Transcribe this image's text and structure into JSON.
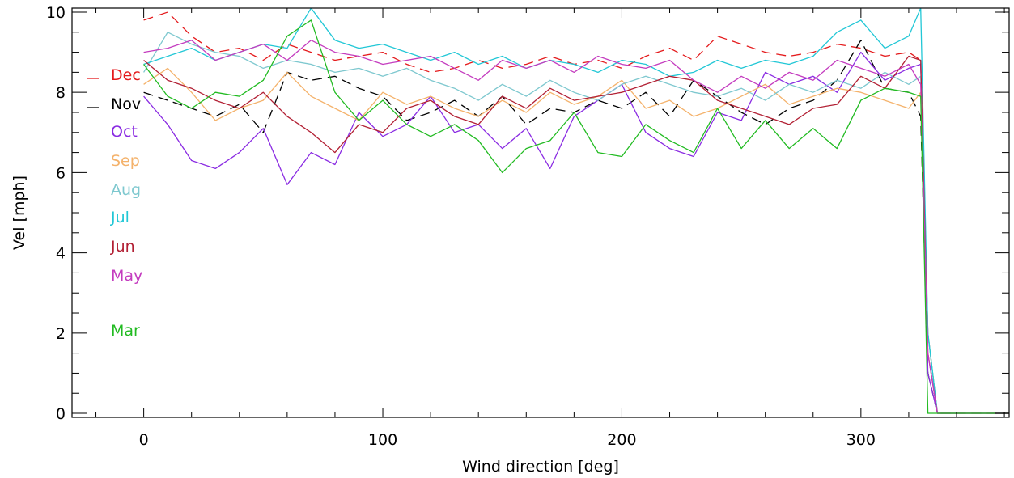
{
  "chart_data": {
    "type": "line",
    "title": "",
    "xlabel": "Wind direction [deg]",
    "ylabel": "Vel [mph]",
    "xlim": [
      -30,
      362
    ],
    "ylim": [
      -0.1,
      10.1
    ],
    "x_ticks": [
      0,
      100,
      200,
      300
    ],
    "y_ticks": [
      0,
      2,
      4,
      6,
      8,
      10
    ],
    "grid": false,
    "legend_position": "left-inside",
    "x": [
      0,
      10,
      20,
      30,
      40,
      50,
      60,
      70,
      80,
      90,
      100,
      110,
      120,
      130,
      140,
      150,
      160,
      170,
      180,
      190,
      200,
      210,
      220,
      230,
      240,
      250,
      260,
      270,
      280,
      290,
      300,
      310,
      320,
      325,
      328,
      332,
      362
    ],
    "series": [
      {
        "name": "Dec",
        "color": "#e41a1c",
        "dashed": true,
        "values": [
          9.8,
          10.0,
          9.4,
          9.0,
          9.1,
          8.8,
          9.2,
          9.0,
          8.8,
          8.9,
          9.0,
          8.7,
          8.5,
          8.6,
          8.8,
          8.6,
          8.7,
          8.9,
          8.7,
          8.8,
          8.6,
          8.9,
          9.1,
          8.8,
          9.4,
          9.2,
          9.0,
          8.9,
          9.0,
          9.2,
          9.1,
          8.9,
          9.0,
          8.8,
          2.0,
          0.0,
          0.0
        ]
      },
      {
        "name": "Nov",
        "color": "#000000",
        "dashed": true,
        "values": [
          8.0,
          7.8,
          7.6,
          7.4,
          7.7,
          7.0,
          8.5,
          8.3,
          8.4,
          8.1,
          7.9,
          7.3,
          7.5,
          7.8,
          7.4,
          7.9,
          7.2,
          7.6,
          7.5,
          7.8,
          7.6,
          8.0,
          7.4,
          8.3,
          7.9,
          7.5,
          7.2,
          7.6,
          7.8,
          8.3,
          9.3,
          8.1,
          8.0,
          7.4,
          1.0,
          0.0,
          0.0
        ]
      },
      {
        "name": "Oct",
        "color": "#8a2be2",
        "dashed": false,
        "values": [
          7.9,
          7.2,
          6.3,
          6.1,
          6.5,
          7.1,
          5.7,
          6.5,
          6.2,
          7.5,
          6.9,
          7.2,
          7.9,
          7.0,
          7.2,
          6.6,
          7.1,
          6.1,
          7.4,
          7.8,
          8.2,
          7.0,
          6.6,
          6.4,
          7.5,
          7.3,
          8.5,
          8.2,
          8.4,
          8.0,
          9.0,
          8.3,
          8.6,
          8.7,
          1.0,
          0.0,
          0.0
        ]
      },
      {
        "name": "Sep",
        "color": "#f4b26b",
        "dashed": false,
        "values": [
          8.2,
          8.6,
          8.0,
          7.3,
          7.6,
          7.8,
          8.5,
          7.9,
          7.6,
          7.3,
          8.0,
          7.7,
          7.9,
          7.6,
          7.4,
          7.8,
          7.5,
          8.0,
          7.7,
          7.9,
          8.3,
          7.6,
          7.8,
          7.4,
          7.6,
          7.9,
          8.2,
          7.7,
          7.9,
          8.1,
          8.0,
          7.8,
          7.6,
          8.0,
          2.0,
          0.0,
          0.0
        ]
      },
      {
        "name": "Aug",
        "color": "#7ec8cf",
        "dashed": false,
        "values": [
          8.5,
          9.5,
          9.2,
          9.0,
          8.9,
          8.6,
          8.8,
          8.7,
          8.5,
          8.6,
          8.4,
          8.6,
          8.3,
          8.1,
          7.8,
          8.2,
          7.9,
          8.3,
          8.0,
          7.8,
          8.2,
          8.4,
          8.2,
          8.0,
          7.9,
          8.1,
          7.8,
          8.2,
          8.0,
          8.3,
          8.1,
          8.5,
          8.2,
          8.4,
          2.0,
          0.0,
          0.0
        ]
      },
      {
        "name": "Jul",
        "color": "#22c7d6",
        "dashed": false,
        "values": [
          8.7,
          8.9,
          9.1,
          8.8,
          9.0,
          9.2,
          9.1,
          10.1,
          9.3,
          9.1,
          9.2,
          9.0,
          8.8,
          9.0,
          8.7,
          8.9,
          8.6,
          8.8,
          8.7,
          8.5,
          8.8,
          8.7,
          8.4,
          8.5,
          8.8,
          8.6,
          8.8,
          8.7,
          8.9,
          9.5,
          9.8,
          9.1,
          9.4,
          10.1,
          2.0,
          0.0,
          0.0
        ]
      },
      {
        "name": "Jun",
        "color": "#b22034",
        "dashed": false,
        "values": [
          8.8,
          8.3,
          8.1,
          7.8,
          7.6,
          8.0,
          7.4,
          7.0,
          6.5,
          7.2,
          7.0,
          7.6,
          7.8,
          7.4,
          7.2,
          7.9,
          7.6,
          8.1,
          7.8,
          7.9,
          8.0,
          8.2,
          8.4,
          8.3,
          7.8,
          7.6,
          7.4,
          7.2,
          7.6,
          7.7,
          8.4,
          8.1,
          8.9,
          8.8,
          1.5,
          0.0,
          0.0
        ]
      },
      {
        "name": "May",
        "color": "#c43cbf",
        "dashed": false,
        "values": [
          9.0,
          9.1,
          9.3,
          8.8,
          9.0,
          9.2,
          8.8,
          9.3,
          9.0,
          8.9,
          8.7,
          8.8,
          8.9,
          8.6,
          8.3,
          8.8,
          8.6,
          8.8,
          8.5,
          8.9,
          8.7,
          8.6,
          8.8,
          8.3,
          8.0,
          8.4,
          8.1,
          8.5,
          8.3,
          8.8,
          8.6,
          8.4,
          8.7,
          8.2,
          1.5,
          0.0,
          0.0
        ]
      },
      {
        "name": "Mar",
        "color": "#22bb22",
        "dashed": false,
        "values": [
          8.7,
          7.9,
          7.6,
          8.0,
          7.9,
          8.3,
          9.4,
          9.8,
          8.0,
          7.3,
          7.8,
          7.2,
          6.9,
          7.2,
          6.8,
          6.0,
          6.6,
          6.8,
          7.5,
          6.5,
          6.4,
          7.2,
          6.8,
          6.5,
          7.6,
          6.6,
          7.3,
          6.6,
          7.1,
          6.6,
          7.8,
          8.1,
          8.0,
          7.9,
          0.0,
          0.0,
          0.0
        ]
      }
    ]
  }
}
